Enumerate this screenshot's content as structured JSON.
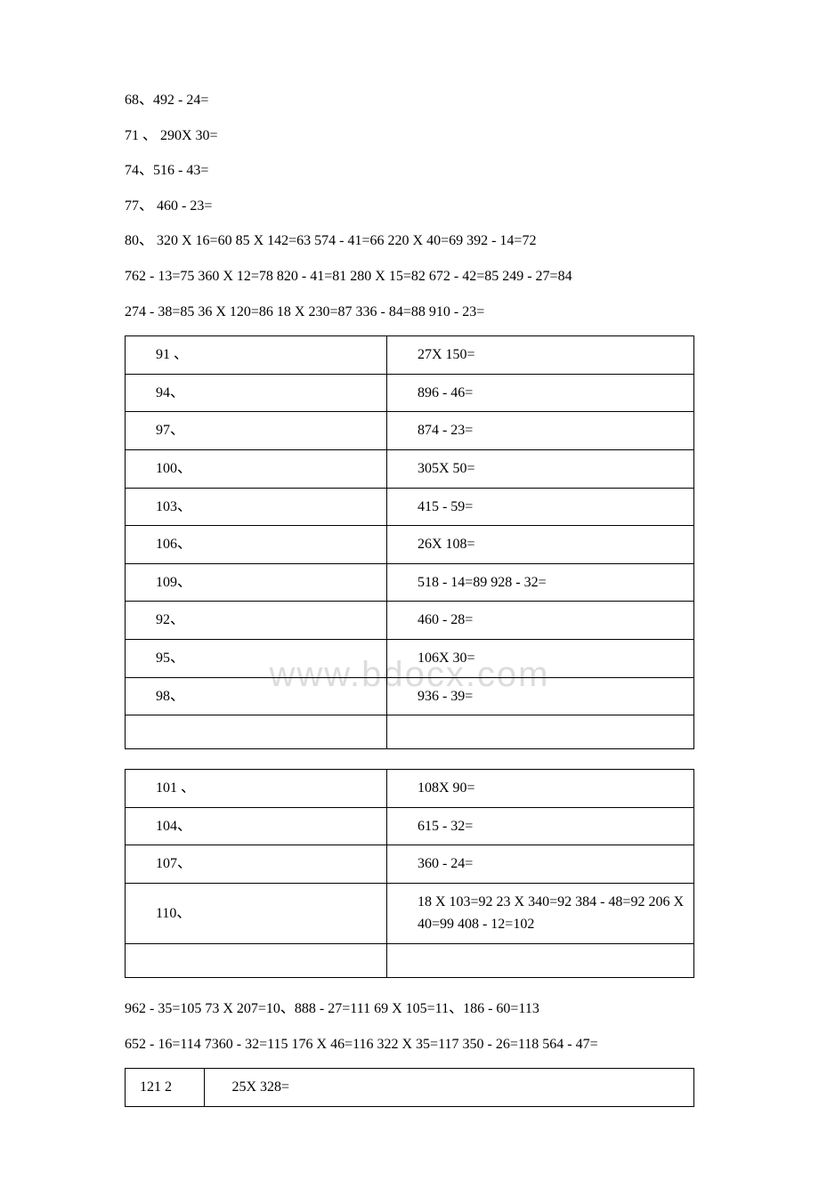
{
  "lines_top": [
    "68、492 - 24=",
    "71 、 290X 30=",
    "74、516 - 43=",
    "77、 460 - 23=",
    "80、 320 X 16=60 85 X 142=63 574 - 41=66 220 X 40=69 392 - 14=72",
    "762 - 13=75 360 X 12=78 820 - 41=81 280 X 15=82 672 - 42=85 249 - 27=84",
    "274 - 38=85 36 X 120=86 18 X 230=87 336 - 84=88 910 - 23="
  ],
  "table1": [
    {
      "left": "91 、",
      "right": "27X 150="
    },
    {
      "left": "94、",
      "right": "896 - 46="
    },
    {
      "left": "97、",
      "right": "874 - 23="
    },
    {
      "left": "100、",
      "right": "305X 50="
    },
    {
      "left": "103、",
      "right": "415 - 59="
    },
    {
      "left": "106、",
      "right": "26X 108="
    },
    {
      "left": "109、",
      "right": "518 - 14=89 928 - 32="
    },
    {
      "left": "92、",
      "right": "460 - 28="
    },
    {
      "left": "95、",
      "right": "106X 30="
    },
    {
      "left": "98、",
      "right": "936 - 39="
    },
    {
      "left": "",
      "right": ""
    }
  ],
  "table2": [
    {
      "left": "101 、",
      "right": "108X 90="
    },
    {
      "left": "104、",
      "right": "615 - 32="
    },
    {
      "left": "107、",
      "right": "360 - 24="
    },
    {
      "left": "110、",
      "right": "18 X 103=92 23 X 340=92 384 - 48=92 206 X 40=99 408 - 12=102"
    },
    {
      "left": "",
      "right": ""
    }
  ],
  "lines_mid": [
    "962 - 35=105 73 X 207=10、888 - 27=111 69 X 105=11、186 - 60=113",
    "652 - 16=114 7360 - 32=115 176 X 46=116 322 X 35=117 350 - 26=118 564 - 47="
  ],
  "table3": [
    {
      "left": "121 2",
      "right": "25X 328="
    }
  ],
  "watermark": "www.bdocx.com"
}
